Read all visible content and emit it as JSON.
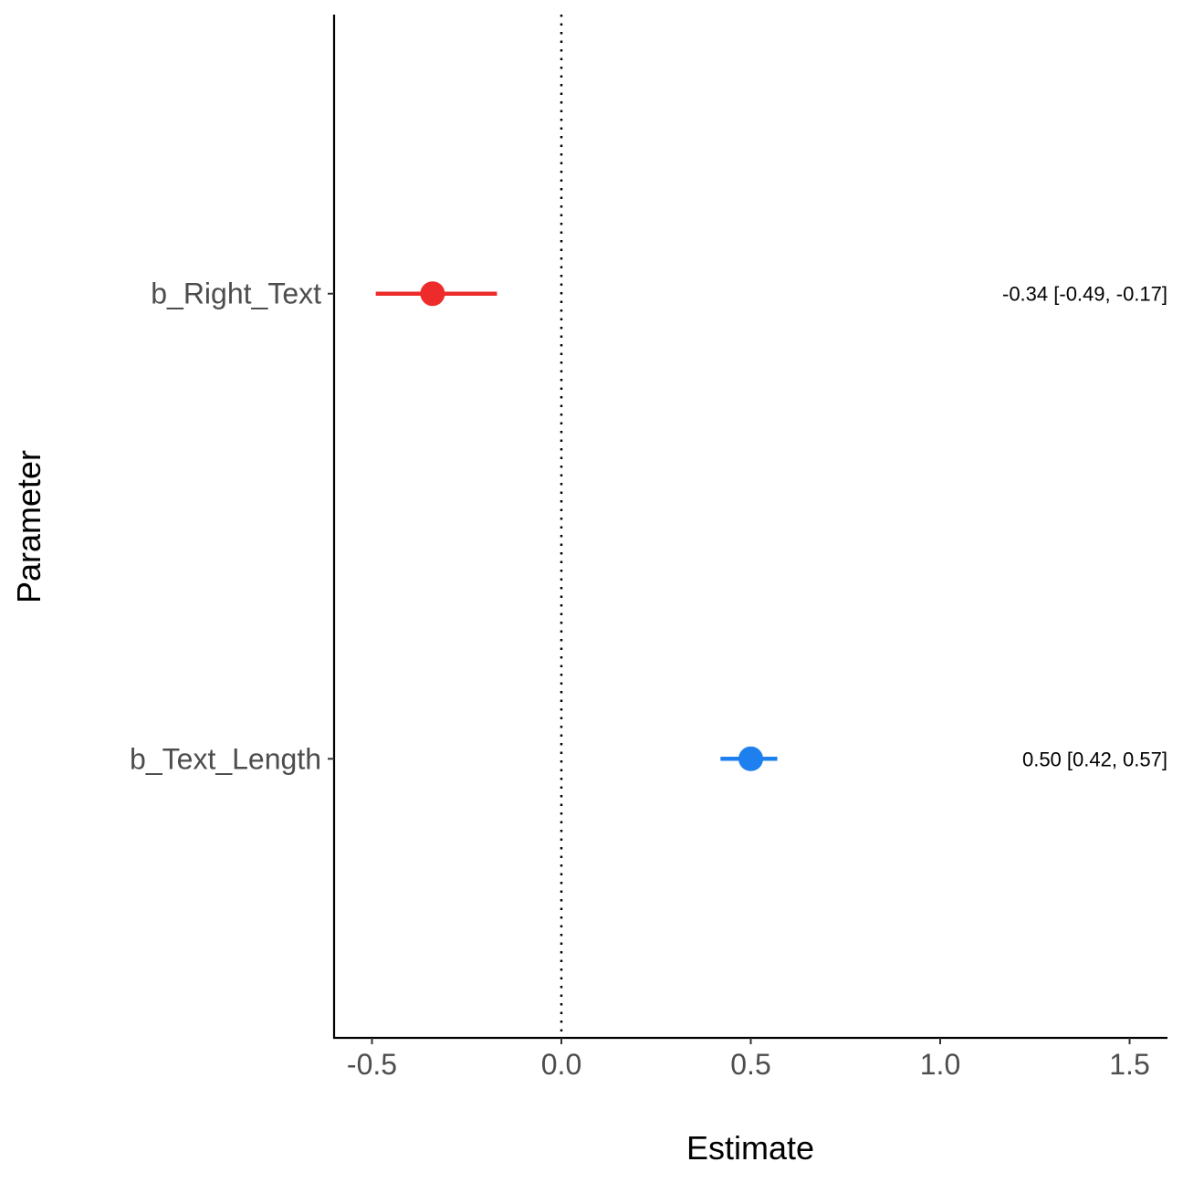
{
  "chart_data": {
    "type": "scatter",
    "subtype": "forest-plot",
    "xlabel": "Estimate",
    "ylabel": "Parameter",
    "xlim": [
      -0.6,
      1.6
    ],
    "x_ticks": [
      "-0.5",
      "0.0",
      "0.5",
      "1.0",
      "1.5"
    ],
    "reference_line": {
      "x": 0,
      "style": "dotted"
    },
    "grid": false,
    "legend": "none",
    "parameters": [
      {
        "name": "b_Right_Text",
        "estimate": -0.34,
        "ci_low": -0.49,
        "ci_high": -0.17,
        "label": "-0.34 [-0.49, -0.17]",
        "color": "#ee2b2b"
      },
      {
        "name": "b_Text_Length",
        "estimate": 0.5,
        "ci_low": 0.42,
        "ci_high": 0.57,
        "label": "0.50 [0.42, 0.57]",
        "color": "#1e7fef"
      }
    ]
  }
}
